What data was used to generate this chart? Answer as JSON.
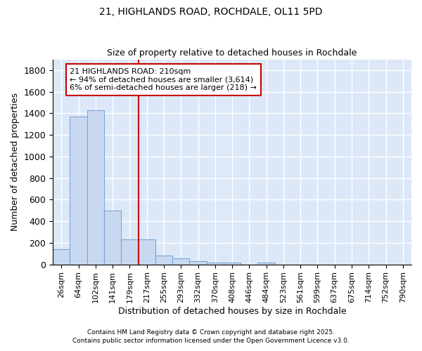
{
  "title1": "21, HIGHLANDS ROAD, ROCHDALE, OL11 5PD",
  "title2": "Size of property relative to detached houses in Rochdale",
  "xlabel": "Distribution of detached houses by size in Rochdale",
  "ylabel": "Number of detached properties",
  "categories": [
    "26sqm",
    "64sqm",
    "102sqm",
    "141sqm",
    "179sqm",
    "217sqm",
    "255sqm",
    "293sqm",
    "332sqm",
    "370sqm",
    "408sqm",
    "446sqm",
    "484sqm",
    "523sqm",
    "561sqm",
    "599sqm",
    "637sqm",
    "675sqm",
    "714sqm",
    "752sqm",
    "790sqm"
  ],
  "values": [
    140,
    1370,
    1430,
    500,
    230,
    230,
    85,
    55,
    30,
    18,
    15,
    0,
    15,
    0,
    0,
    0,
    0,
    0,
    0,
    0,
    0
  ],
  "bar_color": "#c8d8f0",
  "bar_edge_color": "#7ba7d4",
  "plot_bg_color": "#dce8f8",
  "fig_bg_color": "#ffffff",
  "grid_color": "#ffffff",
  "red_line_x": 4.5,
  "annotation_line1": "21 HIGHLANDS ROAD: 210sqm",
  "annotation_line2": "← 94% of detached houses are smaller (3,614)",
  "annotation_line3": "6% of semi-detached houses are larger (218) →",
  "annotation_box_color": "#ffffff",
  "annotation_box_edge": "#cc0000",
  "footer1": "Contains HM Land Registry data © Crown copyright and database right 2025.",
  "footer2": "Contains public sector information licensed under the Open Government Licence v3.0.",
  "ylim": [
    0,
    1900
  ],
  "yticks": [
    0,
    200,
    400,
    600,
    800,
    1000,
    1200,
    1400,
    1600,
    1800
  ]
}
